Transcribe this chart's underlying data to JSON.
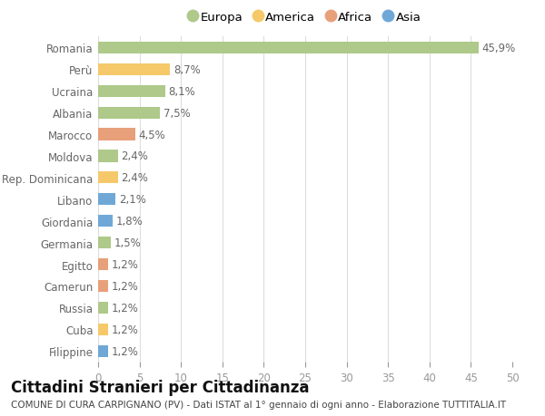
{
  "countries": [
    "Romania",
    "Perù",
    "Ucraina",
    "Albania",
    "Marocco",
    "Moldova",
    "Rep. Dominicana",
    "Libano",
    "Giordania",
    "Germania",
    "Egitto",
    "Camerun",
    "Russia",
    "Cuba",
    "Filippine"
  ],
  "values": [
    45.9,
    8.7,
    8.1,
    7.5,
    4.5,
    2.4,
    2.4,
    2.1,
    1.8,
    1.5,
    1.2,
    1.2,
    1.2,
    1.2,
    1.2
  ],
  "labels": [
    "45,9%",
    "8,7%",
    "8,1%",
    "7,5%",
    "4,5%",
    "2,4%",
    "2,4%",
    "2,1%",
    "1,8%",
    "1,5%",
    "1,2%",
    "1,2%",
    "1,2%",
    "1,2%",
    "1,2%"
  ],
  "continents": [
    "Europa",
    "America",
    "Europa",
    "Europa",
    "Africa",
    "Europa",
    "America",
    "Asia",
    "Asia",
    "Europa",
    "Africa",
    "Africa",
    "Europa",
    "America",
    "Asia"
  ],
  "continent_colors": {
    "Europa": "#aec98a",
    "America": "#f5c96a",
    "Africa": "#e8a07a",
    "Asia": "#6fa8d6"
  },
  "legend_order": [
    "Europa",
    "America",
    "Africa",
    "Asia"
  ],
  "xlim": [
    0,
    50
  ],
  "xticks": [
    0,
    5,
    10,
    15,
    20,
    25,
    30,
    35,
    40,
    45,
    50
  ],
  "title": "Cittadini Stranieri per Cittadinanza",
  "subtitle": "COMUNE DI CURA CARPIGNANO (PV) - Dati ISTAT al 1° gennaio di ogni anno - Elaborazione TUTTITALIA.IT",
  "bg_color": "#ffffff",
  "grid_color": "#dddddd",
  "bar_height": 0.55,
  "label_fontsize": 8.5,
  "tick_fontsize": 8.5,
  "title_fontsize": 12,
  "subtitle_fontsize": 7.5
}
